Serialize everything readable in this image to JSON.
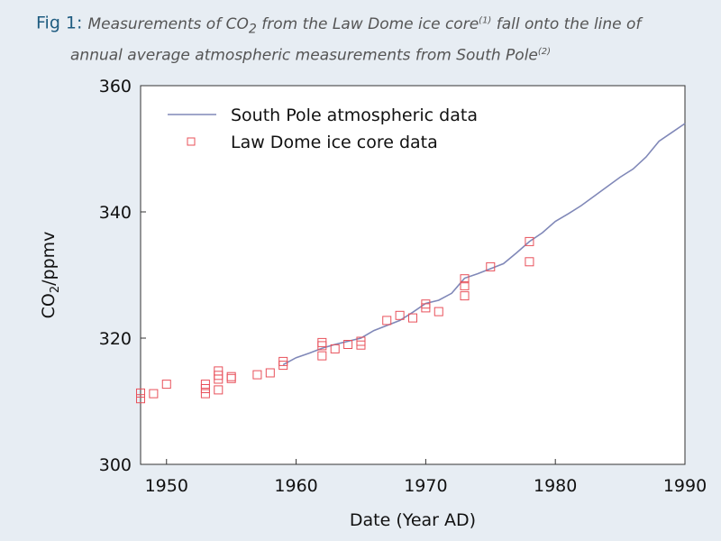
{
  "caption": {
    "label": "Fig 1:",
    "line1_a": "Measurements of CO",
    "line1_sub": "2",
    "line1_b": " from the Law Dome ice core",
    "line1_sup": "(1)",
    "line1_c": " fall onto the line of",
    "line2": "annual average atmospheric measurements from South Pole",
    "line2_sup": "(2)"
  },
  "chart_data": {
    "type": "scatter",
    "xlabel": "Date (Year AD)",
    "ylabel_main": "CO",
    "ylabel_sub": "2",
    "ylabel_rest": "/ppmv",
    "xlim": [
      1948,
      1990
    ],
    "ylim": [
      300,
      360
    ],
    "xticks": [
      1950,
      1960,
      1970,
      1980,
      1990
    ],
    "yticks": [
      300,
      320,
      340,
      360
    ],
    "legend_position": "top-left",
    "colors": {
      "line": "#8088b8",
      "markers": "#e8505a"
    },
    "series": [
      {
        "name": "South Pole atmospheric data",
        "kind": "line",
        "x": [
          1959,
          1960,
          1961,
          1962,
          1963,
          1964,
          1965,
          1966,
          1967,
          1968,
          1969,
          1970,
          1971,
          1972,
          1973,
          1974,
          1975,
          1976,
          1977,
          1978,
          1979,
          1980,
          1981,
          1982,
          1983,
          1984,
          1985,
          1986,
          1987,
          1988,
          1989,
          1990
        ],
        "y": [
          315.8,
          316.9,
          317.6,
          318.4,
          319.0,
          319.5,
          320.0,
          321.2,
          322.0,
          322.8,
          324.1,
          325.5,
          326.0,
          327.1,
          329.5,
          330.2,
          331.0,
          331.8,
          333.5,
          335.3,
          336.7,
          338.5,
          339.7,
          341.0,
          342.5,
          344.0,
          345.5,
          346.8,
          348.7,
          351.2,
          352.6,
          354.0
        ]
      },
      {
        "name": "Law Dome ice core data",
        "kind": "scatter",
        "x": [
          1948,
          1948,
          1949,
          1950,
          1953,
          1953,
          1953,
          1954,
          1954,
          1954,
          1954,
          1955,
          1955,
          1957,
          1958,
          1959,
          1959,
          1962,
          1962,
          1962,
          1963,
          1964,
          1965,
          1965,
          1967,
          1968,
          1969,
          1970,
          1970,
          1971,
          1973,
          1973,
          1973,
          1975,
          1978,
          1978
        ],
        "y": [
          311.3,
          310.4,
          311.2,
          312.7,
          312.7,
          312.0,
          311.2,
          314.8,
          314.1,
          313.5,
          311.8,
          313.9,
          313.6,
          314.2,
          314.5,
          316.3,
          315.7,
          319.3,
          318.8,
          317.2,
          318.3,
          319.0,
          319.5,
          318.9,
          322.8,
          323.6,
          323.2,
          325.4,
          324.8,
          324.2,
          329.4,
          328.3,
          326.7,
          331.3,
          335.3,
          332.1
        ]
      }
    ]
  }
}
